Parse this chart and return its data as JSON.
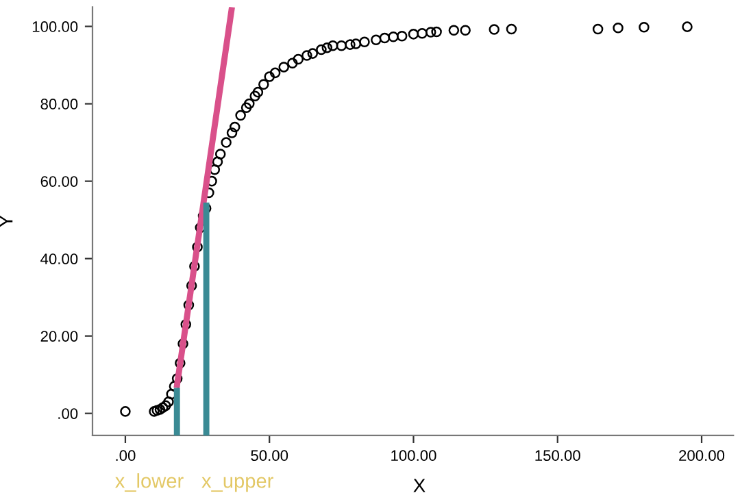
{
  "chart_data": {
    "type": "scatter",
    "xlabel": "X",
    "ylabel": "Y",
    "xlim": [
      -11.4,
      211
    ],
    "ylim": [
      -5.7,
      105
    ],
    "xticks": [
      {
        "value": 0,
        "label": ".00"
      },
      {
        "value": 50,
        "label": "50.00"
      },
      {
        "value": 100,
        "label": "100.00"
      },
      {
        "value": 150,
        "label": "150.00"
      },
      {
        "value": 200,
        "label": "200.00"
      }
    ],
    "yticks": [
      {
        "value": 0,
        "label": ".00"
      },
      {
        "value": 20,
        "label": "20.00"
      },
      {
        "value": 40,
        "label": "40.00"
      },
      {
        "value": 60,
        "label": "60.00"
      },
      {
        "value": 80,
        "label": "80.00"
      },
      {
        "value": 100,
        "label": "100.00"
      }
    ],
    "grid": false,
    "legend": false,
    "series": [
      {
        "marker": "circle",
        "color": "#000000",
        "x": [
          0,
          10,
          11,
          12,
          13,
          14,
          15,
          16,
          17,
          18,
          19,
          20,
          21,
          22,
          23,
          24,
          25,
          26,
          27,
          28,
          29,
          30,
          31,
          32,
          33,
          35,
          37,
          38,
          40,
          42,
          43,
          45,
          46,
          48,
          50,
          52,
          55,
          58,
          60,
          63,
          65,
          68,
          70,
          72,
          75,
          78,
          80,
          83,
          87,
          90,
          93,
          96,
          100,
          103,
          106,
          108,
          114,
          118,
          128,
          134,
          164,
          171,
          180,
          195
        ],
        "values": [
          0.5,
          0.5,
          0.8,
          1,
          1.5,
          2,
          3,
          5,
          7,
          9,
          13,
          18,
          23,
          28,
          33,
          38,
          43,
          48,
          51,
          53,
          57,
          60,
          63,
          65,
          67,
          70,
          72.5,
          74,
          77,
          79,
          80,
          82,
          83,
          85,
          87,
          88,
          89.5,
          90.5,
          91.5,
          92.5,
          93,
          94,
          94.5,
          95,
          95,
          95.3,
          95.5,
          96,
          96.5,
          97,
          97.3,
          97.5,
          98,
          98.2,
          98.5,
          98.6,
          99,
          99,
          99.2,
          99.3,
          99.3,
          99.6,
          99.8,
          99.9
        ]
      },
      {
        "type": "line",
        "color": "#d9508a",
        "x": [
          17.8,
          37.0
        ],
        "values": [
          6.6,
          105
        ]
      },
      {
        "type": "line",
        "color": "#3a8a94",
        "x": [
          17.9,
          17.9
        ],
        "values": [
          -5.7,
          6.6
        ]
      },
      {
        "type": "line",
        "color": "#3a8a94",
        "x": [
          28.1,
          28.1
        ],
        "values": [
          -5.7,
          54.5
        ]
      }
    ],
    "annotations": [
      "x_lower",
      "x_upper"
    ]
  }
}
